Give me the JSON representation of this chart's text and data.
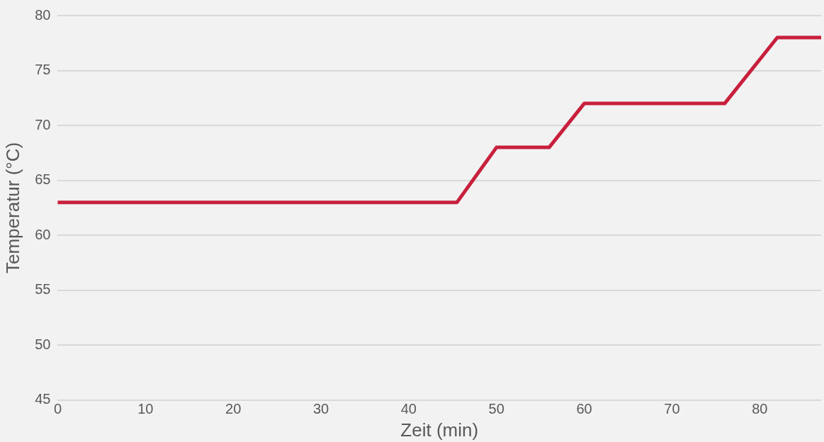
{
  "chart_data": {
    "type": "line",
    "xlabel": "Zeit (min)",
    "ylabel": "Temperatur (°C)",
    "x": [
      0,
      45.5,
      50,
      56,
      60,
      76,
      82,
      87
    ],
    "series": [
      {
        "color": "#c8203c",
        "values": [
          63,
          63,
          68,
          68,
          72,
          72,
          78,
          78
        ]
      }
    ],
    "xlim": [
      0,
      87
    ],
    "xticks": [
      0,
      10,
      20,
      30,
      40,
      50,
      60,
      70,
      80
    ],
    "ylim": [
      45,
      80
    ],
    "yticks": [
      45,
      50,
      55,
      60,
      65,
      70,
      75,
      80
    ],
    "grid": "y",
    "legend": false,
    "marker": "none",
    "line_style": "solid"
  }
}
